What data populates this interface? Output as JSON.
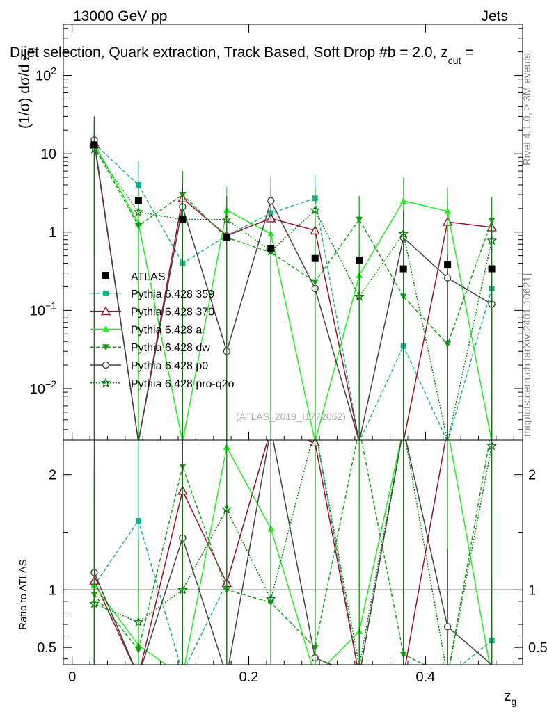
{
  "header": {
    "energy": "13000 GeV pp",
    "category": "Jets",
    "plot_title": "Dijet selection, Quark extraction, Track Based, Soft Drop #b = 2.0, z",
    "title_sub": "cut",
    "title_end": " ="
  },
  "side_text": {
    "rivet": "Rivet 4.1.0, ≥ 3M events",
    "mcplots": "mcplots.cern.ch [arXiv:2401.10621]"
  },
  "watermark": "(ATLAS_2019_I1772062)",
  "chart_data": {
    "type": "line",
    "x": [
      0.025,
      0.075,
      0.125,
      0.175,
      0.225,
      0.275,
      0.325,
      0.375,
      0.425,
      0.475
    ],
    "xlim": [
      -0.01,
      0.51
    ],
    "xticks": [
      "0",
      "0.2",
      "0.4"
    ],
    "xtick_values": [
      0,
      0.2,
      0.4
    ],
    "xlabel": "z",
    "xlabel_sub": "g",
    "main": {
      "ylabel": "(1/σ) dσ/d z",
      "ylabel_sub": "g",
      "yscale": "log",
      "ylim": [
        0.0022,
        450
      ],
      "yticks": [
        {
          "v": 0.01,
          "b": "10",
          "e": "−2"
        },
        {
          "v": 0.1,
          "b": "10",
          "e": "−1"
        },
        {
          "v": 1,
          "b": "1",
          "e": ""
        },
        {
          "v": 10,
          "b": "10",
          "e": ""
        },
        {
          "v": 100,
          "b": "10",
          "e": "2"
        }
      ]
    },
    "ratio": {
      "ylabel": "Ratio to ATLAS",
      "ylim": [
        0.35,
        2.3
      ],
      "yticks": [
        "0.5",
        "1",
        "2"
      ],
      "ytick_values": [
        0.5,
        1,
        2
      ]
    },
    "data": {
      "name": "ATLAS",
      "values": [
        13.0,
        2.5,
        1.45,
        0.85,
        0.62,
        0.46,
        0.44,
        0.34,
        0.38,
        0.34
      ],
      "errors": [
        0.8,
        0.15,
        0.1,
        0.06,
        0.05,
        0.04,
        0.04,
        0.03,
        0.03,
        0.03
      ]
    },
    "series": [
      {
        "name": "Pythia 6.428 359",
        "color": "#19b08f",
        "dash": "5,3",
        "marker": "square",
        "values": [
          13.5,
          4.0,
          0.4,
          0.9,
          1.75,
          2.7,
          0.0001,
          0.035,
          0.002,
          0.19
        ],
        "errors": [
          13,
          4,
          0.4,
          0.9,
          1.8,
          2.7,
          0,
          0.035,
          0.002,
          0.19
        ],
        "ratio": [
          1.04,
          1.6,
          0.28,
          1.06,
          2.82,
          5.9,
          0.0,
          0.1,
          0.005,
          0.56
        ]
      },
      {
        "name": "Pythia 6.428 370",
        "color": "#9b1030",
        "dash": "",
        "marker": "open-triangle",
        "values": [
          14.0,
          0.0001,
          2.7,
          0.9,
          1.5,
          1.05,
          0.0001,
          0.0001,
          1.35,
          1.15
        ],
        "errors": [
          14,
          0,
          2.7,
          0.9,
          1.5,
          1.05,
          0,
          0,
          1.35,
          1.15
        ],
        "ratio": [
          1.08,
          0.0,
          1.86,
          1.06,
          2.42,
          2.28,
          0.0,
          0.0,
          3.55,
          3.4
        ]
      },
      {
        "name": "Pythia 6.428 a",
        "color": "#22ee22",
        "dash": "",
        "marker": "triangle",
        "values": [
          13.5,
          1.3,
          0.0001,
          1.9,
          0.95,
          0.0001,
          0.28,
          2.5,
          1.85,
          0.0001
        ],
        "errors": [
          13,
          1.3,
          0,
          1.9,
          0.95,
          0,
          0.28,
          2.5,
          1.85,
          0
        ],
        "ratio": [
          1.04,
          0.52,
          0.0,
          2.24,
          1.53,
          0.0,
          0.64,
          7.35,
          4.87,
          0.0
        ]
      },
      {
        "name": "Pythia 6.428 dw",
        "color": "#13a013",
        "dash": "5,3",
        "marker": "down-triangle",
        "values": [
          12.5,
          1.2,
          3.0,
          0.85,
          0.55,
          0.23,
          1.45,
          0.15,
          0.037,
          1.4
        ],
        "errors": [
          12,
          1.2,
          3,
          0.85,
          0.55,
          0.23,
          1.45,
          0.15,
          0.037,
          1.4
        ],
        "ratio": [
          0.96,
          0.48,
          2.07,
          1.0,
          0.89,
          0.5,
          3.3,
          0.44,
          0.1,
          4.1
        ]
      },
      {
        "name": "Pythia 6.428 p0",
        "color": "#444444",
        "dash": "",
        "marker": "open-circle",
        "values": [
          15.0,
          0.0001,
          2.1,
          0.03,
          2.5,
          0.19,
          0.0001,
          0.85,
          0.26,
          0.12
        ],
        "errors": [
          15,
          0,
          2.1,
          0.03,
          2.6,
          0.19,
          0,
          0.85,
          0.26,
          0.12
        ],
        "ratio": [
          1.15,
          0.0,
          1.45,
          0.035,
          4.03,
          0.41,
          0.0,
          2.5,
          0.68,
          0.35
        ]
      },
      {
        "name": "Pythia 6.428 pro-q2o",
        "color": "#0d7a0d",
        "dash": "2,2",
        "marker": "star",
        "values": [
          11.5,
          1.8,
          1.45,
          1.45,
          0.57,
          1.9,
          0.15,
          0.95,
          0.0001,
          0.78
        ],
        "errors": [
          11.5,
          1.8,
          1.45,
          1.45,
          0.57,
          1.9,
          0.15,
          0.95,
          0,
          0.78
        ],
        "ratio": [
          0.88,
          0.72,
          1.0,
          1.7,
          0.92,
          4.13,
          0.34,
          2.8,
          0.0,
          2.25
        ]
      }
    ]
  }
}
